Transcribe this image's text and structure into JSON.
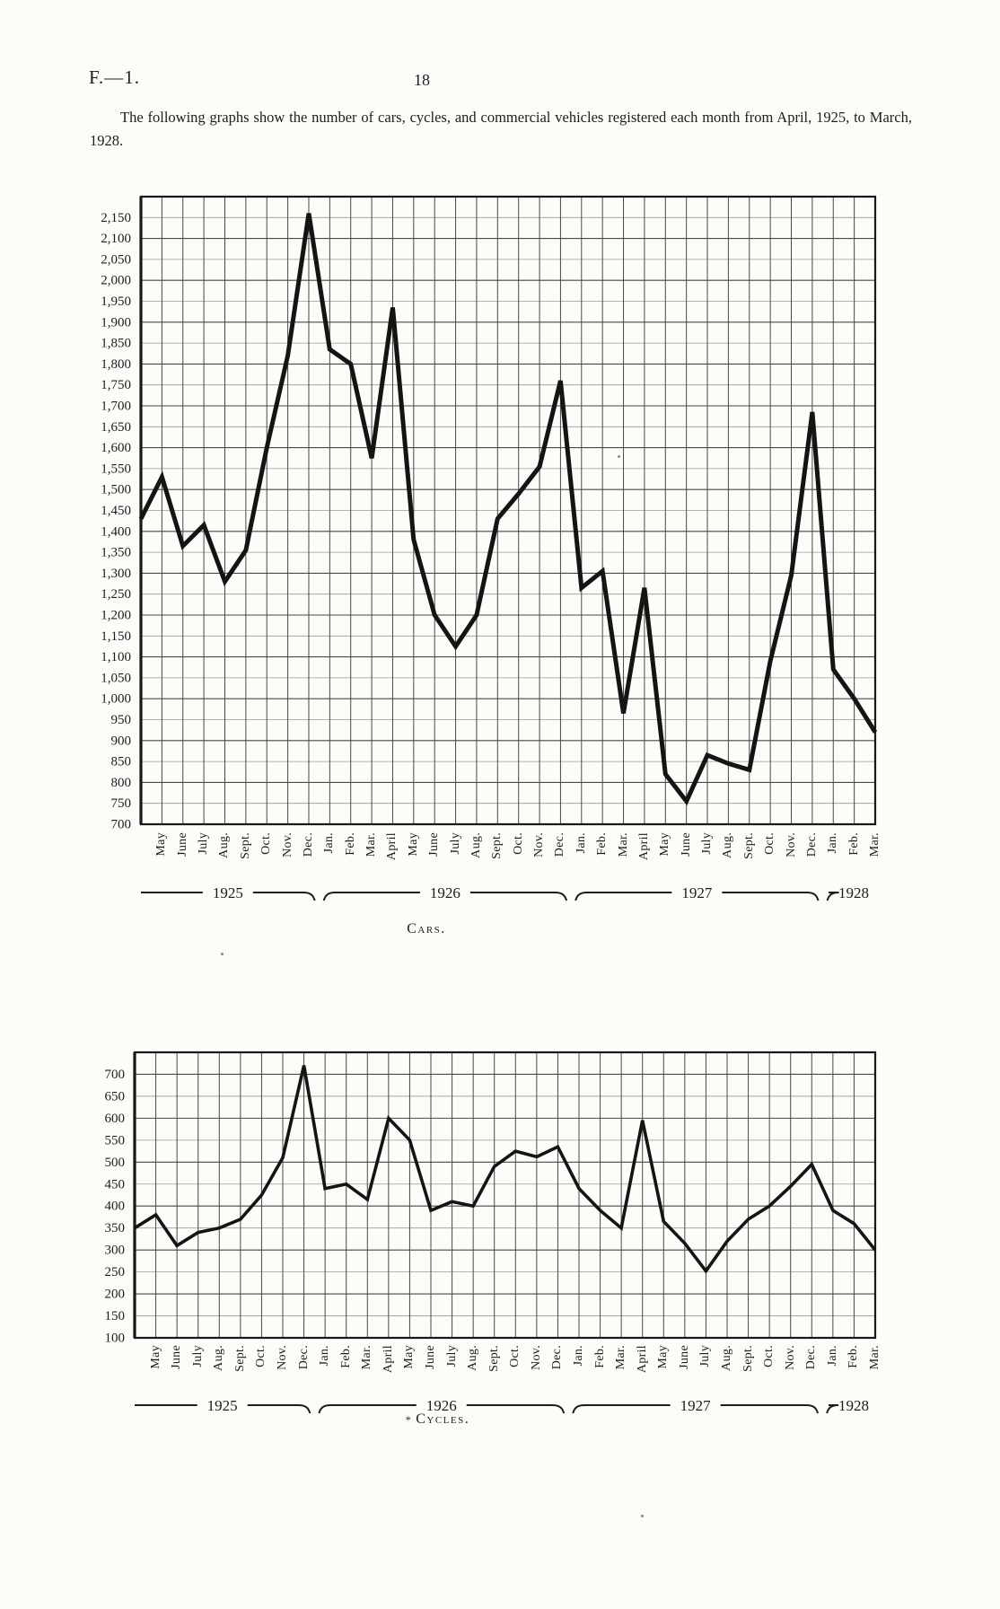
{
  "header": {
    "doc_ref": "F.—1.",
    "page_number": "18",
    "intro": "The following graphs show the number of cars, cycles, and commercial vehicles registered each month from April, 1925, to March, 1928."
  },
  "colors": {
    "paper": "#fcfcf9",
    "ink": "#1e1d1b",
    "grid_minor": "#9b9891",
    "grid_major": "#4a4844",
    "data_line": "#141412"
  },
  "month_axis_labels": [
    "May",
    "June",
    "July",
    "Aug.",
    "Sept.",
    "Oct.",
    "Nov.",
    "Dec.",
    "Jan.",
    "Feb.",
    "Mar.",
    "April",
    "May",
    "June",
    "July",
    "Aug.",
    "Sept.",
    "Oct.",
    "Nov.",
    "Dec.",
    "Jan.",
    "Feb.",
    "Mar.",
    "April",
    "May",
    "June",
    "July",
    "Aug.",
    "Sept.",
    "Oct.",
    "Nov.",
    "Dec.",
    "Jan.",
    "Feb.",
    "Mar."
  ],
  "year_groups": [
    {
      "label": "1925",
      "from_month": 0,
      "to_month": 8
    },
    {
      "label": "1926",
      "from_month": 9,
      "to_month": 20
    },
    {
      "label": "1927",
      "from_month": 21,
      "to_month": 32
    },
    {
      "label": "1928",
      "from_month": 33,
      "to_month": 35
    }
  ],
  "chart_data": [
    {
      "id": "cars",
      "type": "line",
      "title": "Cars.",
      "caption_mark": "",
      "xlabel": "",
      "ylabel": "",
      "grid": true,
      "legend": "none",
      "ylim": [
        700,
        2200
      ],
      "y_ticks": {
        "max": 2150,
        "min": 700,
        "step": 50
      },
      "x": [
        "Apr 1925",
        "May 1925",
        "Jun 1925",
        "Jul 1925",
        "Aug 1925",
        "Sep 1925",
        "Oct 1925",
        "Nov 1925",
        "Dec 1925",
        "Jan 1926",
        "Feb 1926",
        "Mar 1926",
        "Apr 1926",
        "May 1926",
        "Jun 1926",
        "Jul 1926",
        "Aug 1926",
        "Sep 1926",
        "Oct 1926",
        "Nov 1926",
        "Dec 1926",
        "Jan 1927",
        "Feb 1927",
        "Mar 1927",
        "Apr 1927",
        "May 1927",
        "Jun 1927",
        "Jul 1927",
        "Aug 1927",
        "Sep 1927",
        "Oct 1927",
        "Nov 1927",
        "Dec 1927",
        "Jan 1928",
        "Feb 1928",
        "Mar 1928"
      ],
      "values": [
        1430,
        1530,
        1365,
        1415,
        1280,
        1355,
        1600,
        1820,
        2160,
        1835,
        1800,
        1575,
        1935,
        1380,
        1200,
        1125,
        1200,
        1430,
        1490,
        1555,
        1760,
        1265,
        1305,
        965,
        1265,
        820,
        755,
        865,
        845,
        830,
        1090,
        1295,
        1685,
        1070,
        1000,
        920
      ]
    },
    {
      "id": "cycles",
      "type": "line",
      "title": "Cycles.",
      "caption_mark": "*",
      "xlabel": "",
      "ylabel": "",
      "grid": true,
      "legend": "none",
      "ylim": [
        100,
        750
      ],
      "y_ticks": {
        "max": 700,
        "min": 100,
        "step": 50
      },
      "x": [
        "Apr 1925",
        "May 1925",
        "Jun 1925",
        "Jul 1925",
        "Aug 1925",
        "Sep 1925",
        "Oct 1925",
        "Nov 1925",
        "Dec 1925",
        "Jan 1926",
        "Feb 1926",
        "Mar 1926",
        "Apr 1926",
        "May 1926",
        "Jun 1926",
        "Jul 1926",
        "Aug 1926",
        "Sep 1926",
        "Oct 1926",
        "Nov 1926",
        "Dec 1926",
        "Jan 1927",
        "Feb 1927",
        "Mar 1927",
        "Apr 1927",
        "May 1927",
        "Jun 1927",
        "Jul 1927",
        "Aug 1927",
        "Sep 1927",
        "Oct 1927",
        "Nov 1927",
        "Dec 1927",
        "Jan 1928",
        "Feb 1928",
        "Mar 1928"
      ],
      "values": [
        350,
        380,
        310,
        340,
        350,
        370,
        425,
        510,
        720,
        440,
        450,
        415,
        600,
        550,
        390,
        410,
        400,
        490,
        525,
        512,
        535,
        440,
        390,
        350,
        595,
        365,
        315,
        252,
        320,
        370,
        400,
        445,
        495,
        390,
        360,
        300
      ]
    }
  ]
}
